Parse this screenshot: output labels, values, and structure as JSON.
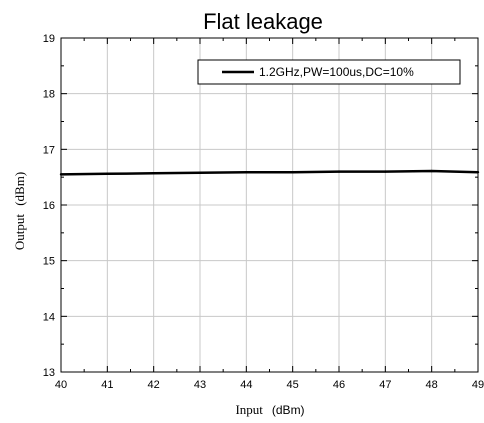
{
  "chart_data": {
    "type": "line",
    "title": "Flat leakage",
    "xlabel": "Input",
    "xlabel_unit": "(dBm)",
    "ylabel": "Output",
    "ylabel_unit": "(dBm)",
    "xlim": [
      40,
      49
    ],
    "ylim": [
      13,
      19
    ],
    "x_ticks": [
      40,
      41,
      42,
      43,
      44,
      45,
      46,
      47,
      48,
      49
    ],
    "y_ticks": [
      13,
      14,
      15,
      16,
      17,
      18,
      19
    ],
    "grid": true,
    "legend_position": "top-right",
    "series": [
      {
        "name": "1.2GHz,PW=100us,DC=10%",
        "color": "#000000",
        "x": [
          40,
          41,
          42,
          43,
          44,
          45,
          46,
          47,
          48,
          49
        ],
        "y": [
          16.55,
          16.56,
          16.57,
          16.58,
          16.59,
          16.59,
          16.6,
          16.6,
          16.61,
          16.59
        ]
      }
    ]
  }
}
